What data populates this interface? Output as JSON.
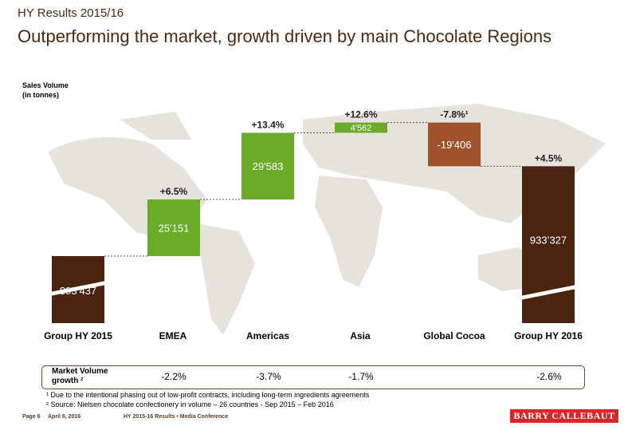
{
  "header": {
    "kicker": "HY Results 2015/16",
    "title": "Outperforming the market, growth driven by main Chocolate Regions"
  },
  "chart_data": {
    "type": "waterfall",
    "ylabel": "Sales Volume\n(in tonnes)",
    "categories": [
      "Group HY 2015",
      "EMEA",
      "Americas",
      "Asia",
      "Global Cocoa",
      "Group HY 2016"
    ],
    "values": [
      893437,
      25151,
      29583,
      4562,
      -19406,
      933327
    ],
    "kinds": [
      "total",
      "delta",
      "delta",
      "delta",
      "delta",
      "total"
    ],
    "value_labels": [
      "893’437",
      "25'151",
      "29'583",
      "4'562",
      "-19'406",
      "933’327"
    ],
    "growth_labels": [
      "",
      "+6.5%",
      "+13.4%",
      "+12.6%",
      "-7.8%¹",
      "+4.5%"
    ],
    "axis_break": true,
    "colors": {
      "total": "#4b2411",
      "increase": "#6aab2a",
      "decrease": "#a0522d",
      "map": "#e6e2dc"
    }
  },
  "market_volume": {
    "label": "Market Volume growth ²",
    "values": [
      "-2.2%",
      "-3.7%",
      "-1.7%",
      "",
      "-2.6%"
    ]
  },
  "footnotes": [
    "¹ Due to the intentional phasing out of low-profit contracts, including long-term ingredients agreements",
    "² Source: Nielsen chocolate confectionery in volume – 26 countries  - Sep 2015 – Feb 2016"
  ],
  "footer": {
    "page": "Page 6",
    "date": "April 6, 2016",
    "event": "HY 2015-16 Results • Media Conference",
    "logo": "BARRY CALLEBAUT"
  }
}
